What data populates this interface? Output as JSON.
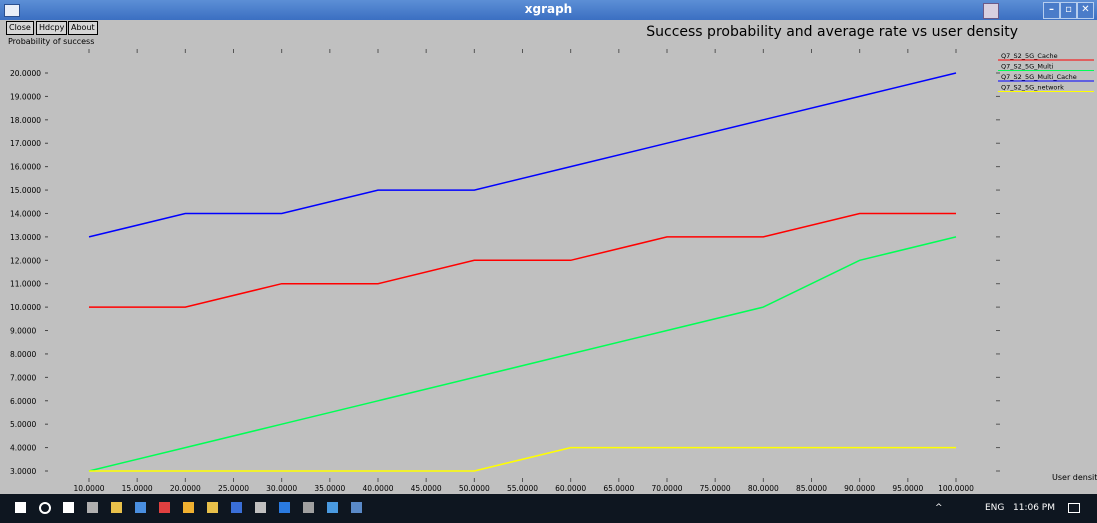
{
  "window": {
    "title": "xgraph"
  },
  "toolbar": {
    "buttons": [
      "Close",
      "Hdcpy",
      "About"
    ]
  },
  "chart_data": {
    "type": "line",
    "title": "Success probability and average rate vs user density",
    "ylabel": "Probability of success",
    "xlabel": "User density",
    "xlim": [
      10,
      100
    ],
    "ylim": [
      3,
      20
    ],
    "x_ticks": [
      "10.0000",
      "15.0000",
      "20.0000",
      "25.0000",
      "30.0000",
      "35.0000",
      "40.0000",
      "45.0000",
      "50.0000",
      "55.0000",
      "60.0000",
      "65.0000",
      "70.0000",
      "75.0000",
      "80.0000",
      "85.0000",
      "90.0000",
      "95.0000",
      "100.0000"
    ],
    "y_ticks": [
      "3.0000",
      "4.0000",
      "5.0000",
      "6.0000",
      "7.0000",
      "8.0000",
      "9.0000",
      "10.0000",
      "11.0000",
      "12.0000",
      "13.0000",
      "14.0000",
      "15.0000",
      "16.0000",
      "17.0000",
      "18.0000",
      "19.0000",
      "20.0000"
    ],
    "legend_position": "right",
    "x": [
      10,
      20,
      30,
      40,
      50,
      60,
      70,
      80,
      90,
      100
    ],
    "series": [
      {
        "name": "Q7_S2_5G_Cache",
        "color": "#ff0000",
        "values": [
          10,
          10,
          11,
          11,
          12,
          12,
          13,
          13,
          14,
          14
        ]
      },
      {
        "name": "Q7_S2_5G_Multi",
        "color": "#00ff55",
        "values": [
          3,
          4,
          5,
          6,
          7,
          8,
          9,
          10,
          12,
          13
        ]
      },
      {
        "name": "Q7_S2_5G_Multi_Cache",
        "color": "#0000ff",
        "values": [
          13,
          14,
          14,
          15,
          15,
          16,
          17,
          18,
          19,
          20
        ]
      },
      {
        "name": "Q7_S2_5G_network",
        "color": "#ffff00",
        "values": [
          3,
          3,
          3,
          3,
          3,
          4,
          4,
          4,
          4,
          4
        ]
      }
    ]
  },
  "taskbar": {
    "icons": [
      "windows-start-icon",
      "cortana-circle-icon",
      "task-view-icon",
      "calculator-icon",
      "file-explorer-icon",
      "notes-icon",
      "red-app-icon",
      "chrome-icon",
      "yellow-folder-icon",
      "word-icon",
      "media-icon",
      "blue-app-icon",
      "tool-icon",
      "camera-icon",
      "terminal-icon"
    ],
    "tray": {
      "language": "ENG",
      "time": "11:06 PM"
    }
  }
}
